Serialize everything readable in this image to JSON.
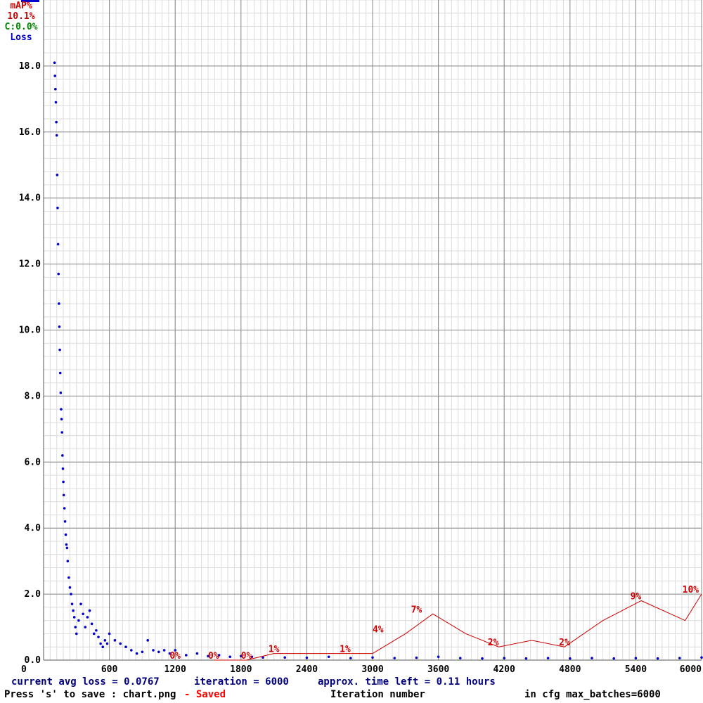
{
  "chart_data": {
    "type": "line",
    "title": "",
    "xlabel": "Iteration number",
    "ylabel": "",
    "xlim": [
      0,
      6000
    ],
    "ylim": [
      0,
      20
    ],
    "grid": true,
    "x_ticks": [
      "0",
      "600",
      "1200",
      "1800",
      "2400",
      "3000",
      "3600",
      "4200",
      "4800",
      "5400",
      "6000"
    ],
    "x_tick_values": [
      0,
      600,
      1200,
      1800,
      2400,
      3000,
      3600,
      4200,
      4800,
      5400,
      6000
    ],
    "y_ticks": [
      "0.0",
      "2.0",
      "4.0",
      "6.0",
      "8.0",
      "10.0",
      "12.0",
      "14.0",
      "16.0",
      "18.0"
    ],
    "y_tick_values": [
      0,
      2,
      4,
      6,
      8,
      10,
      12,
      14,
      16,
      18
    ],
    "legend": {
      "placement": "top-left",
      "entries": [
        {
          "text": "mAP%",
          "color": "#cc0000"
        },
        {
          "text": "10.1%",
          "color": "#cc0000"
        },
        {
          "text": "C:0.0%",
          "color": "#008800"
        },
        {
          "text": "Loss",
          "color": "#0000cc"
        }
      ]
    },
    "series": [
      {
        "name": "Loss",
        "color": "#0000cc",
        "style": "points",
        "x": [
          100,
          104,
          108,
          112,
          116,
          120,
          124,
          128,
          132,
          136,
          140,
          144,
          148,
          152,
          156,
          160,
          164,
          168,
          172,
          176,
          180,
          184,
          190,
          196,
          202,
          208,
          214,
          220,
          230,
          240,
          250,
          260,
          270,
          280,
          290,
          300,
          320,
          340,
          360,
          380,
          400,
          420,
          440,
          460,
          480,
          500,
          520,
          540,
          560,
          580,
          600,
          650,
          700,
          750,
          800,
          850,
          900,
          950,
          1000,
          1050,
          1100,
          1150,
          1200,
          1300,
          1400,
          1500,
          1600,
          1700,
          1800,
          1900,
          2000,
          2200,
          2400,
          2600,
          2800,
          3000,
          3200,
          3400,
          3600,
          3800,
          4000,
          4200,
          4400,
          4600,
          4800,
          5000,
          5200,
          5400,
          5600,
          5800,
          6000
        ],
        "y": [
          18.1,
          17.7,
          17.3,
          16.9,
          16.3,
          15.9,
          14.7,
          13.7,
          12.6,
          11.7,
          10.8,
          10.1,
          9.4,
          8.7,
          8.1,
          7.6,
          7.3,
          6.9,
          6.2,
          5.8,
          5.4,
          5.0,
          4.6,
          4.2,
          3.8,
          3.5,
          3.4,
          3.0,
          2.5,
          2.2,
          2.0,
          1.7,
          1.5,
          1.3,
          1.0,
          0.8,
          1.2,
          1.7,
          1.4,
          1.0,
          1.3,
          1.5,
          1.1,
          0.8,
          0.9,
          0.7,
          0.5,
          0.4,
          0.6,
          0.5,
          0.8,
          0.6,
          0.5,
          0.4,
          0.3,
          0.2,
          0.25,
          0.6,
          0.3,
          0.25,
          0.3,
          0.2,
          0.3,
          0.15,
          0.2,
          0.12,
          0.15,
          0.1,
          0.12,
          0.1,
          0.08,
          0.08,
          0.07,
          0.1,
          0.06,
          0.08,
          0.06,
          0.07,
          0.1,
          0.06,
          0.05,
          0.06,
          0.05,
          0.06,
          0.05,
          0.06,
          0.05,
          0.06,
          0.05,
          0.06,
          0.08
        ]
      },
      {
        "name": "mAP%",
        "color": "#cc0000",
        "style": "line",
        "scale_max_percent": 100,
        "x": [
          1550,
          1850,
          2100,
          2350,
          2750,
          3000,
          3300,
          3550,
          3850,
          4150,
          4450,
          4750,
          5100,
          5450,
          5850,
          6000
        ],
        "y": [
          0,
          0,
          1,
          1,
          1,
          1,
          4,
          7,
          4,
          2,
          3,
          2,
          6,
          9,
          6,
          10
        ],
        "data_labels": [
          {
            "x": 1200,
            "text": "0%"
          },
          {
            "x": 1550,
            "text": "0%"
          },
          {
            "x": 1850,
            "text": "0%"
          },
          {
            "x": 2100,
            "text": "1%"
          },
          {
            "x": 2750,
            "text": "1%"
          },
          {
            "x": 3050,
            "text": "4%"
          },
          {
            "x": 3400,
            "text": "7%"
          },
          {
            "x": 4100,
            "text": "2%"
          },
          {
            "x": 4750,
            "text": "2%"
          },
          {
            "x": 5400,
            "text": "9%"
          },
          {
            "x": 5900,
            "text": "10%"
          }
        ]
      }
    ]
  },
  "footer": {
    "avg_loss": "current avg loss = 0.0767",
    "iteration": "iteration = 6000",
    "time_left": "approx. time left = 0.11 hours",
    "save_hint": "Press 's' to save : chart.png",
    "saved": "- Saved",
    "xlabel": "Iteration number",
    "max_batches": "in cfg max_batches=6000"
  }
}
